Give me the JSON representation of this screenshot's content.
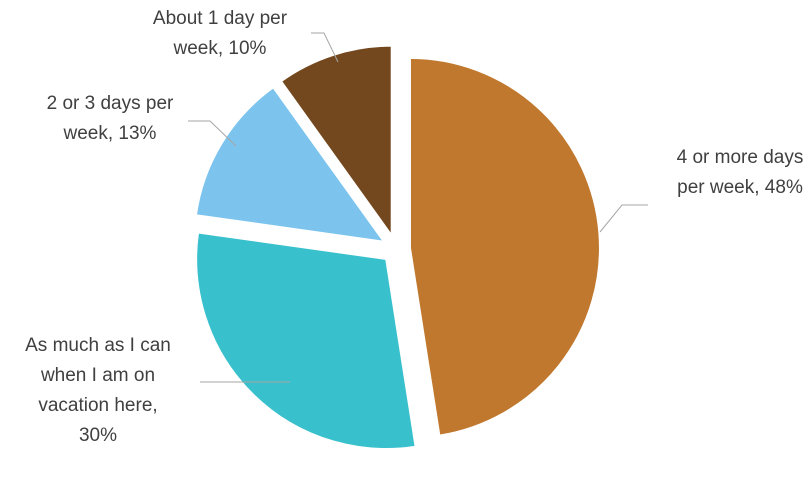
{
  "chart_data": {
    "type": "pie",
    "title": "",
    "slices": [
      {
        "label_lines": [
          "4 or more days",
          "per week, 48%"
        ],
        "value": 48,
        "color": "#C0782E"
      },
      {
        "label_lines": [
          "As much as I can",
          "when I am on",
          "vacation here,",
          "30%"
        ],
        "value": 30,
        "color": "#38C0CC"
      },
      {
        "label_lines": [
          "2 or 3 days per",
          "week, 13%"
        ],
        "value": 13,
        "color": "#7CC4EE"
      },
      {
        "label_lines": [
          "About 1 day per",
          "week, 10%"
        ],
        "value": 10,
        "color": "#74481E"
      }
    ],
    "legend": "none",
    "start_angle": "12 o'clock",
    "direction": "clockwise",
    "exploded": true
  }
}
